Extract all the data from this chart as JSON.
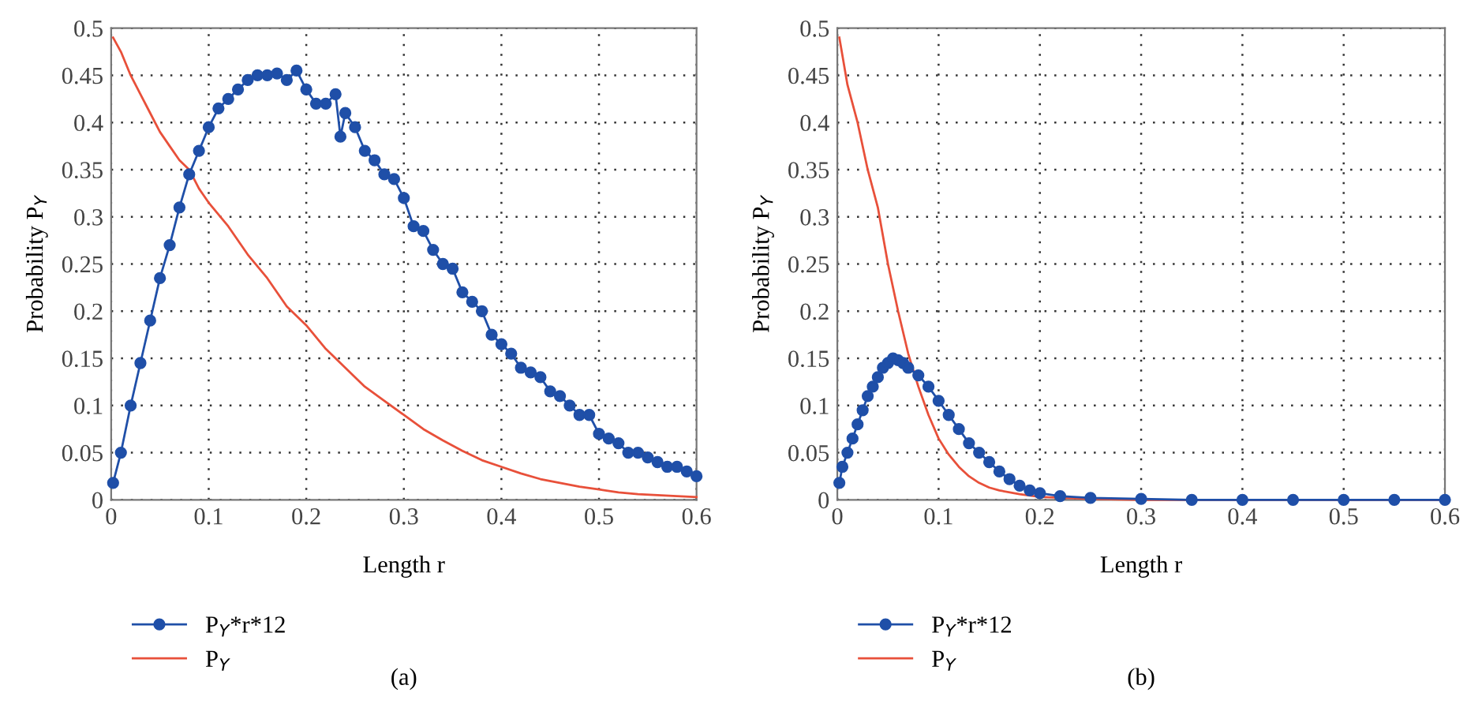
{
  "chart_data": [
    {
      "type": "line",
      "xlabel": "Length r",
      "ylabel": "Probability P$_{Y}$",
      "xlim": [
        0,
        0.6
      ],
      "ylim": [
        0,
        0.5
      ],
      "xticks": [
        0,
        0.1,
        0.2,
        0.3,
        0.4,
        0.5,
        0.6
      ],
      "yticks": [
        0,
        0.05,
        0.1,
        0.15,
        0.2,
        0.25,
        0.3,
        0.35,
        0.4,
        0.45,
        0.5
      ],
      "grid": true,
      "legend": "bottom left",
      "annotations": [
        "(a)"
      ],
      "series": [
        {
          "name": "P$_{Y}$*r*12",
          "color": "#1f4fa8",
          "marker": "circle",
          "x": [
            0.002,
            0.01,
            0.02,
            0.03,
            0.04,
            0.05,
            0.06,
            0.07,
            0.08,
            0.09,
            0.1,
            0.11,
            0.12,
            0.13,
            0.14,
            0.15,
            0.16,
            0.17,
            0.18,
            0.19,
            0.2,
            0.21,
            0.22,
            0.23,
            0.235,
            0.24,
            0.25,
            0.26,
            0.27,
            0.28,
            0.29,
            0.3,
            0.31,
            0.32,
            0.33,
            0.34,
            0.35,
            0.36,
            0.37,
            0.38,
            0.39,
            0.4,
            0.41,
            0.42,
            0.43,
            0.44,
            0.45,
            0.46,
            0.47,
            0.48,
            0.49,
            0.5,
            0.51,
            0.52,
            0.53,
            0.54,
            0.55,
            0.56,
            0.57,
            0.58,
            0.59,
            0.6
          ],
          "values": [
            0.018,
            0.05,
            0.1,
            0.145,
            0.19,
            0.235,
            0.27,
            0.31,
            0.345,
            0.37,
            0.395,
            0.415,
            0.425,
            0.435,
            0.445,
            0.45,
            0.45,
            0.452,
            0.445,
            0.455,
            0.435,
            0.42,
            0.42,
            0.43,
            0.385,
            0.41,
            0.395,
            0.37,
            0.36,
            0.345,
            0.34,
            0.32,
            0.29,
            0.285,
            0.265,
            0.25,
            0.245,
            0.22,
            0.21,
            0.2,
            0.175,
            0.165,
            0.155,
            0.14,
            0.135,
            0.13,
            0.115,
            0.11,
            0.1,
            0.09,
            0.09,
            0.07,
            0.065,
            0.06,
            0.05,
            0.05,
            0.045,
            0.04,
            0.035,
            0.035,
            0.03,
            0.025
          ]
        },
        {
          "name": "P$_{Y}$",
          "color": "#e8503a",
          "marker": "none",
          "x": [
            0.002,
            0.01,
            0.02,
            0.03,
            0.04,
            0.05,
            0.06,
            0.07,
            0.08,
            0.09,
            0.1,
            0.12,
            0.14,
            0.16,
            0.18,
            0.2,
            0.22,
            0.24,
            0.26,
            0.28,
            0.3,
            0.32,
            0.34,
            0.36,
            0.38,
            0.4,
            0.42,
            0.44,
            0.46,
            0.48,
            0.5,
            0.52,
            0.54,
            0.56,
            0.58,
            0.6
          ],
          "values": [
            0.49,
            0.475,
            0.45,
            0.43,
            0.41,
            0.39,
            0.375,
            0.36,
            0.35,
            0.33,
            0.315,
            0.29,
            0.26,
            0.235,
            0.205,
            0.185,
            0.16,
            0.14,
            0.12,
            0.105,
            0.09,
            0.075,
            0.063,
            0.052,
            0.042,
            0.035,
            0.028,
            0.022,
            0.018,
            0.014,
            0.011,
            0.008,
            0.006,
            0.005,
            0.004,
            0.003
          ]
        }
      ]
    },
    {
      "type": "line",
      "xlabel": "Length r",
      "ylabel": "Probability P$_{Y}$",
      "xlim": [
        0,
        0.6
      ],
      "ylim": [
        0,
        0.5
      ],
      "xticks": [
        0,
        0.1,
        0.2,
        0.3,
        0.4,
        0.5,
        0.6
      ],
      "yticks": [
        0,
        0.05,
        0.1,
        0.15,
        0.2,
        0.25,
        0.3,
        0.35,
        0.4,
        0.45,
        0.5
      ],
      "grid": true,
      "legend": "bottom left",
      "annotations": [
        "(b)"
      ],
      "series": [
        {
          "name": "P$_{Y}$*r*12",
          "color": "#1f4fa8",
          "marker": "circle",
          "x": [
            0.002,
            0.005,
            0.01,
            0.015,
            0.02,
            0.025,
            0.03,
            0.035,
            0.04,
            0.045,
            0.05,
            0.055,
            0.06,
            0.065,
            0.07,
            0.08,
            0.09,
            0.1,
            0.11,
            0.12,
            0.13,
            0.14,
            0.15,
            0.16,
            0.17,
            0.18,
            0.19,
            0.2,
            0.22,
            0.25,
            0.3,
            0.35,
            0.4,
            0.45,
            0.5,
            0.55,
            0.6
          ],
          "values": [
            0.018,
            0.035,
            0.05,
            0.065,
            0.08,
            0.095,
            0.11,
            0.12,
            0.13,
            0.14,
            0.145,
            0.15,
            0.148,
            0.145,
            0.14,
            0.132,
            0.12,
            0.105,
            0.09,
            0.075,
            0.06,
            0.05,
            0.04,
            0.03,
            0.022,
            0.015,
            0.01,
            0.007,
            0.004,
            0.002,
            0.001,
            0,
            0,
            0,
            0,
            0,
            0
          ]
        },
        {
          "name": "P$_{Y}$",
          "color": "#e8503a",
          "marker": "none",
          "x": [
            0.002,
            0.01,
            0.02,
            0.03,
            0.04,
            0.05,
            0.06,
            0.07,
            0.08,
            0.09,
            0.1,
            0.11,
            0.12,
            0.13,
            0.14,
            0.15,
            0.16,
            0.18,
            0.2,
            0.25,
            0.3,
            0.6
          ],
          "values": [
            0.49,
            0.44,
            0.4,
            0.35,
            0.31,
            0.25,
            0.2,
            0.155,
            0.12,
            0.09,
            0.065,
            0.048,
            0.035,
            0.025,
            0.018,
            0.013,
            0.01,
            0.006,
            0.003,
            0.001,
            0,
            0
          ]
        }
      ]
    }
  ]
}
